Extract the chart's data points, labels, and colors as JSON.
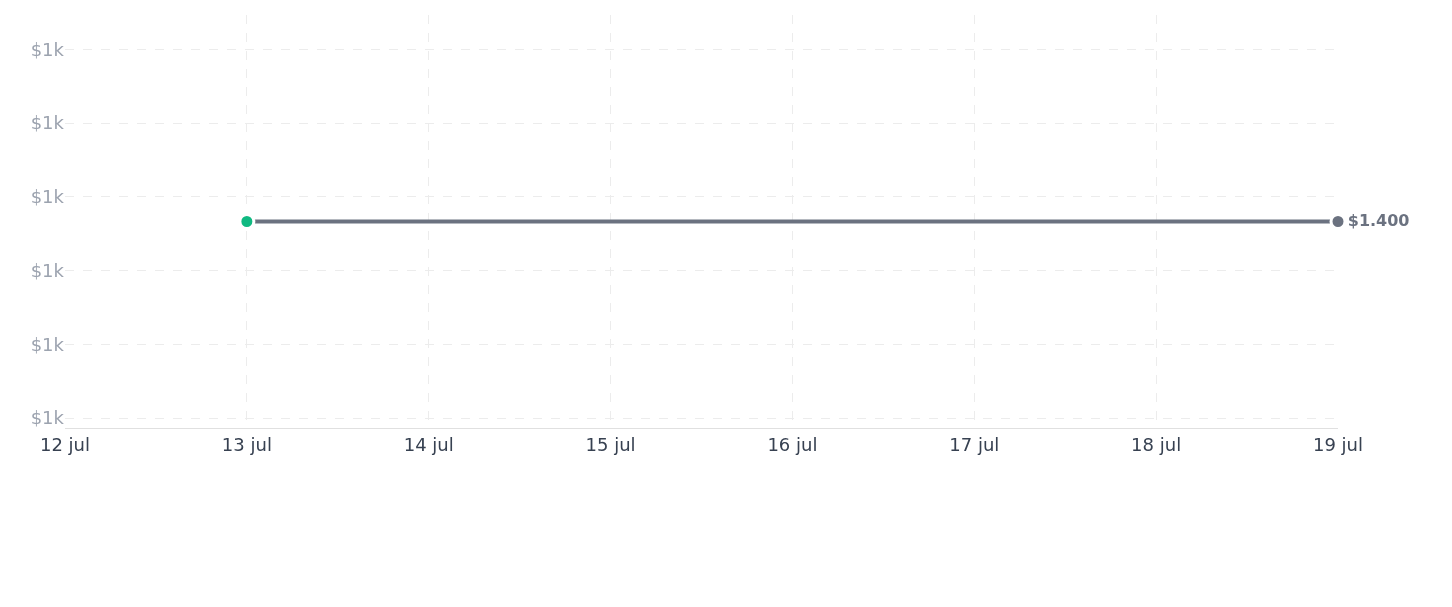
{
  "chart_data": {
    "type": "line",
    "x": [
      "--07-13",
      "--07-19"
    ],
    "series": [
      {
        "color": "#6b7280",
        "colors": [
          "#10b981",
          "#6b7280"
        ],
        "values": [
          1400,
          1400
        ],
        "value_labels": [
          null,
          "$1.400"
        ]
      }
    ],
    "xlim": [
      "--07-12",
      "--07-19"
    ],
    "xticks": [
      {
        "value": "--07-12",
        "label": "12 jul"
      },
      {
        "value": "--07-13",
        "label": "13 jul"
      },
      {
        "value": "--07-14",
        "label": "14 jul"
      },
      {
        "value": "--07-15",
        "label": "15 jul"
      },
      {
        "value": "--07-16",
        "label": "16 jul"
      },
      {
        "value": "--07-17",
        "label": "17 jul"
      },
      {
        "value": "--07-18",
        "label": "18 jul"
      },
      {
        "value": "--07-19",
        "label": "19 jul"
      }
    ],
    "ylim": [
      1391.6,
      1408.4
    ],
    "yticks": [
      {
        "value": 1392,
        "label": "$1k"
      },
      {
        "value": 1395,
        "label": "$1k"
      },
      {
        "value": 1398,
        "label": "$1k"
      },
      {
        "value": 1401,
        "label": "$1k"
      },
      {
        "value": 1404,
        "label": "$1k"
      },
      {
        "value": 1407,
        "label": "$1k"
      }
    ],
    "grid": true,
    "marker": "circle",
    "line_style": "solid"
  }
}
